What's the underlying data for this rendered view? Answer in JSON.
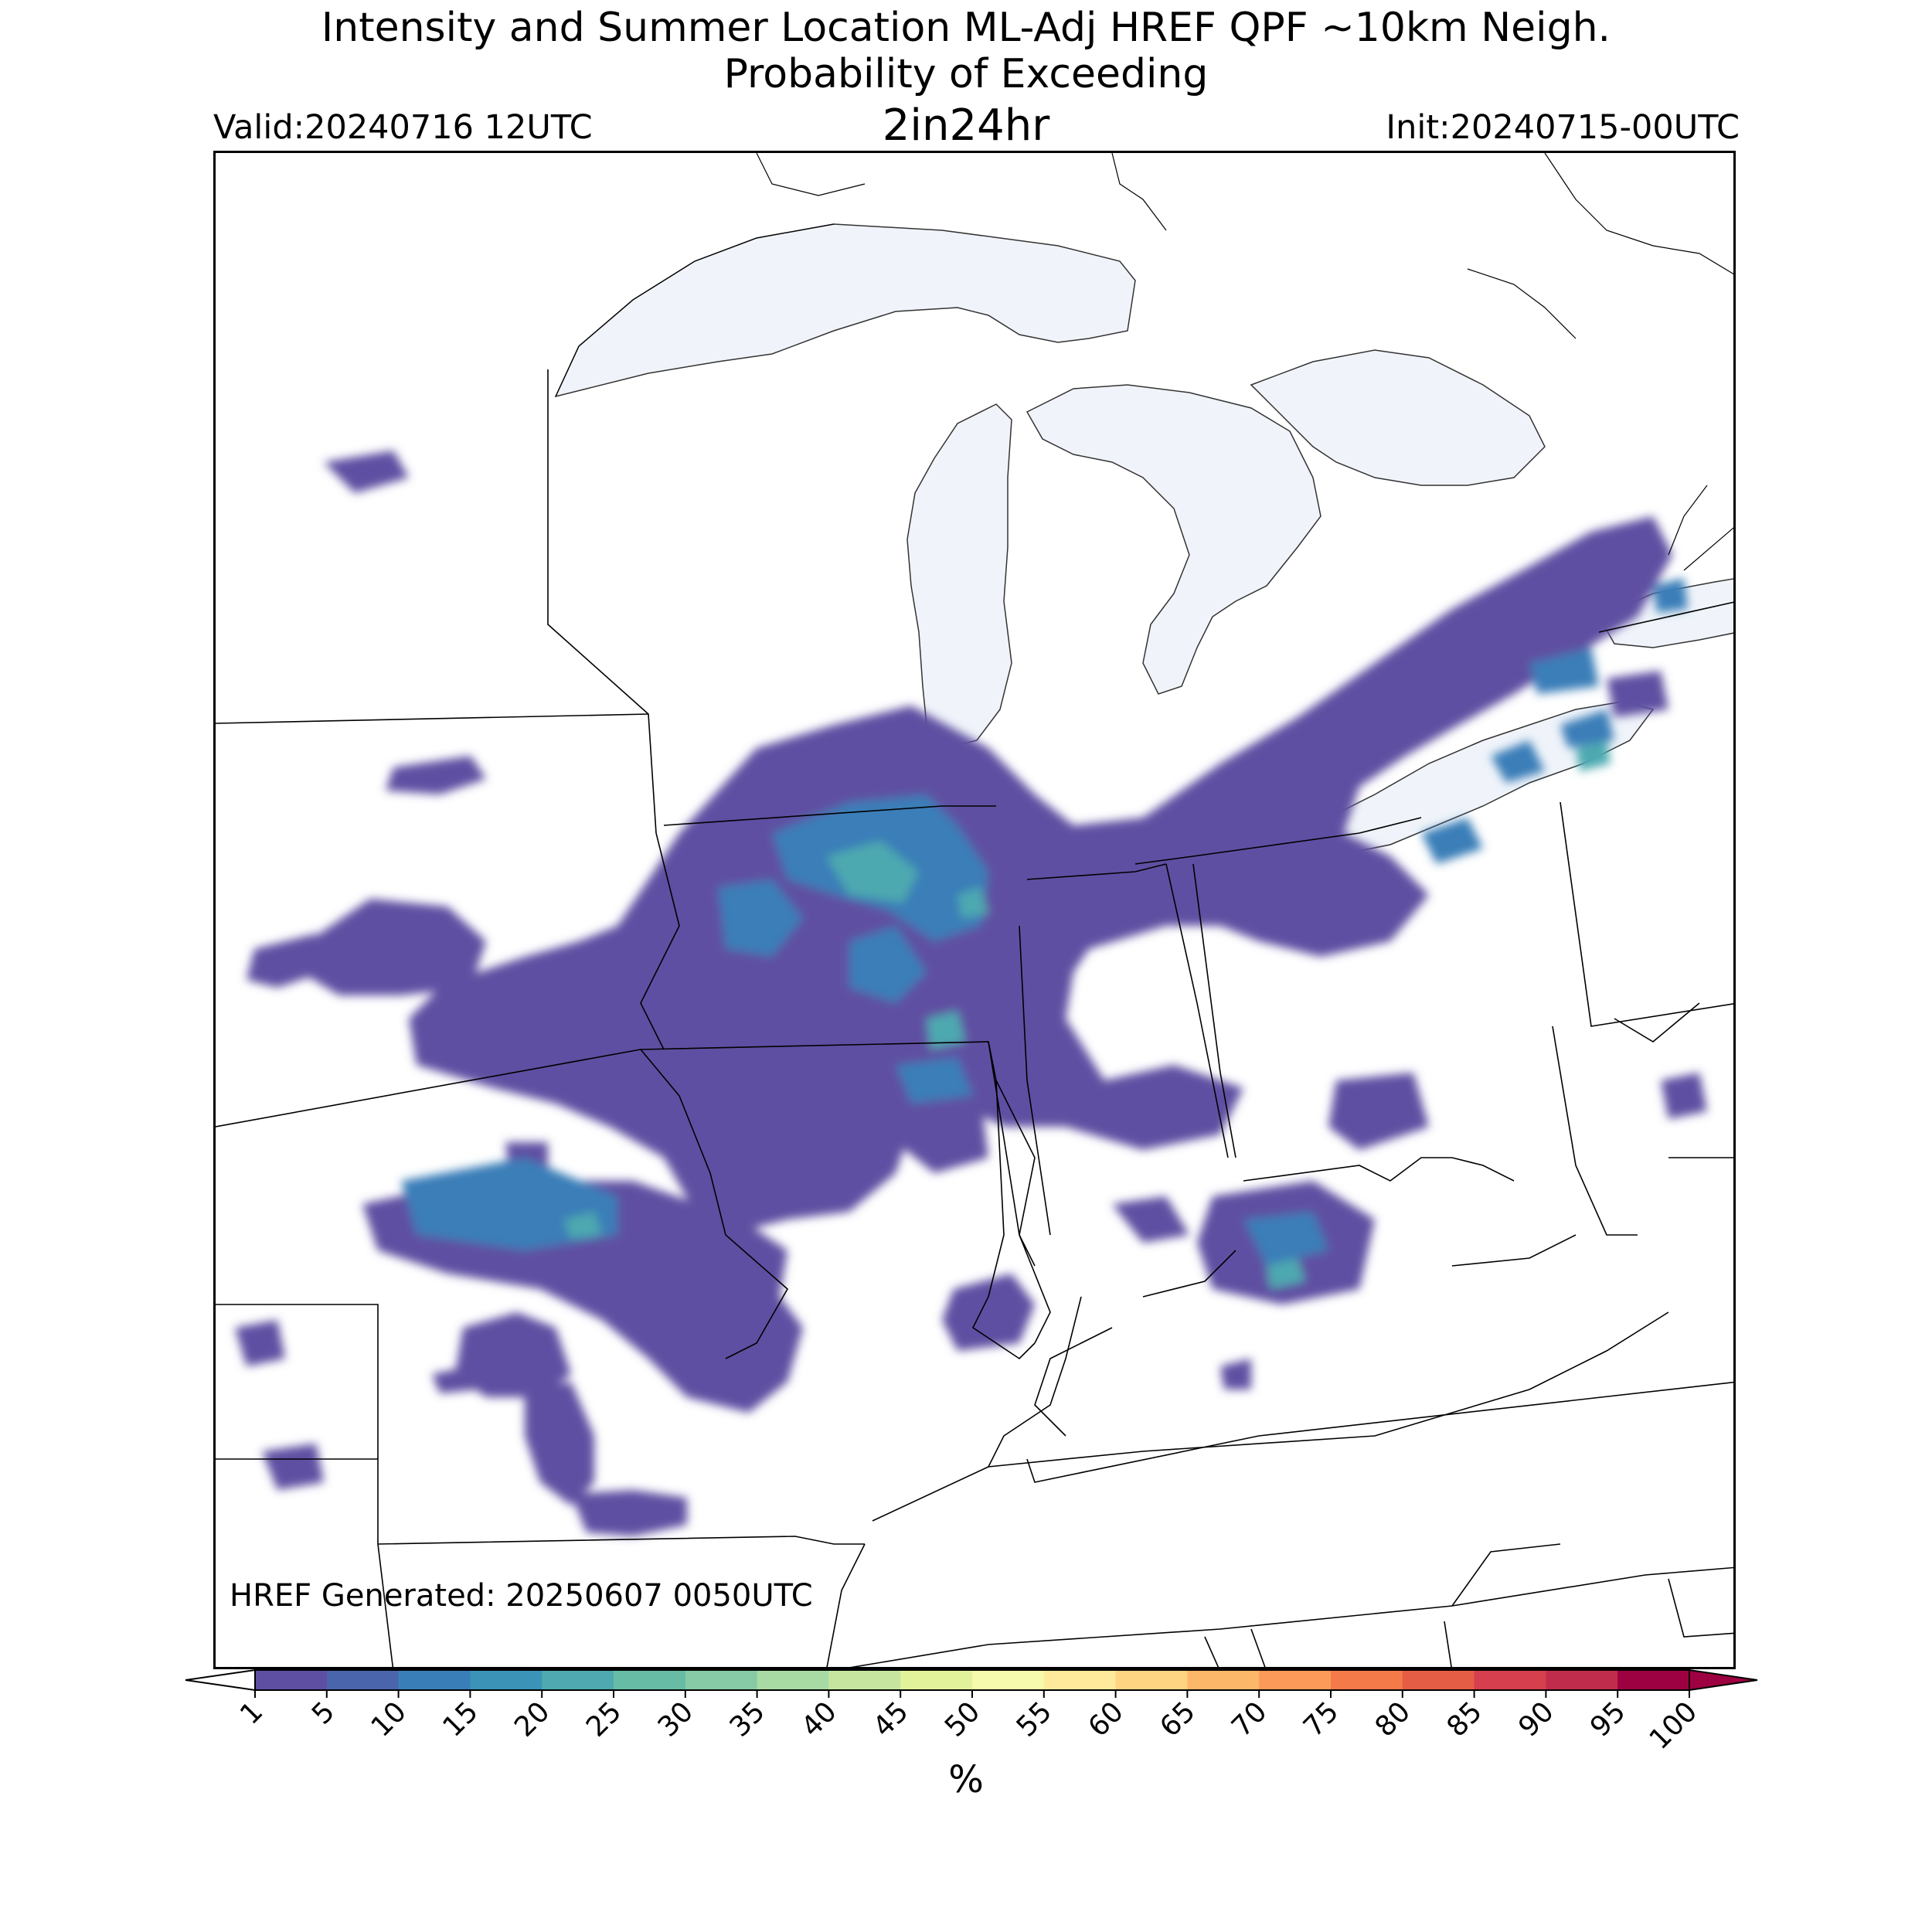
{
  "title": {
    "line1": "Intensity and Summer Location ML-Adj HREF QPF ~10km Neigh.",
    "line2": "Probability of Exceeding",
    "line3": "2in24hr"
  },
  "valid": "Valid:20240716 12UTC",
  "init": "Init:20240715-00UTC",
  "generated": "HREF Generated: 20250607 0050UTC",
  "colorbar": {
    "unit": "%",
    "ticks": [
      "1",
      "5",
      "10",
      "15",
      "20",
      "25",
      "30",
      "35",
      "40",
      "45",
      "50",
      "55",
      "60",
      "65",
      "70",
      "75",
      "80",
      "85",
      "90",
      "95",
      "100"
    ],
    "colors": [
      "#5e4fa2",
      "#4b65ad",
      "#3a7eb8",
      "#3b93b7",
      "#4ea9b0",
      "#67bca5",
      "#86cba5",
      "#a8dba4",
      "#c6e6a0",
      "#e2f29b",
      "#f6faac",
      "#feea9a",
      "#fed382",
      "#fdb768",
      "#fb9a59",
      "#f47a4a",
      "#e65d46",
      "#d6404e",
      "#c02c4b",
      "#9e0142"
    ],
    "extend": "both"
  },
  "map_colors": {
    "lake_fill": "#f0f4fa",
    "land": "#ffffff",
    "boundary": "#000000"
  }
}
